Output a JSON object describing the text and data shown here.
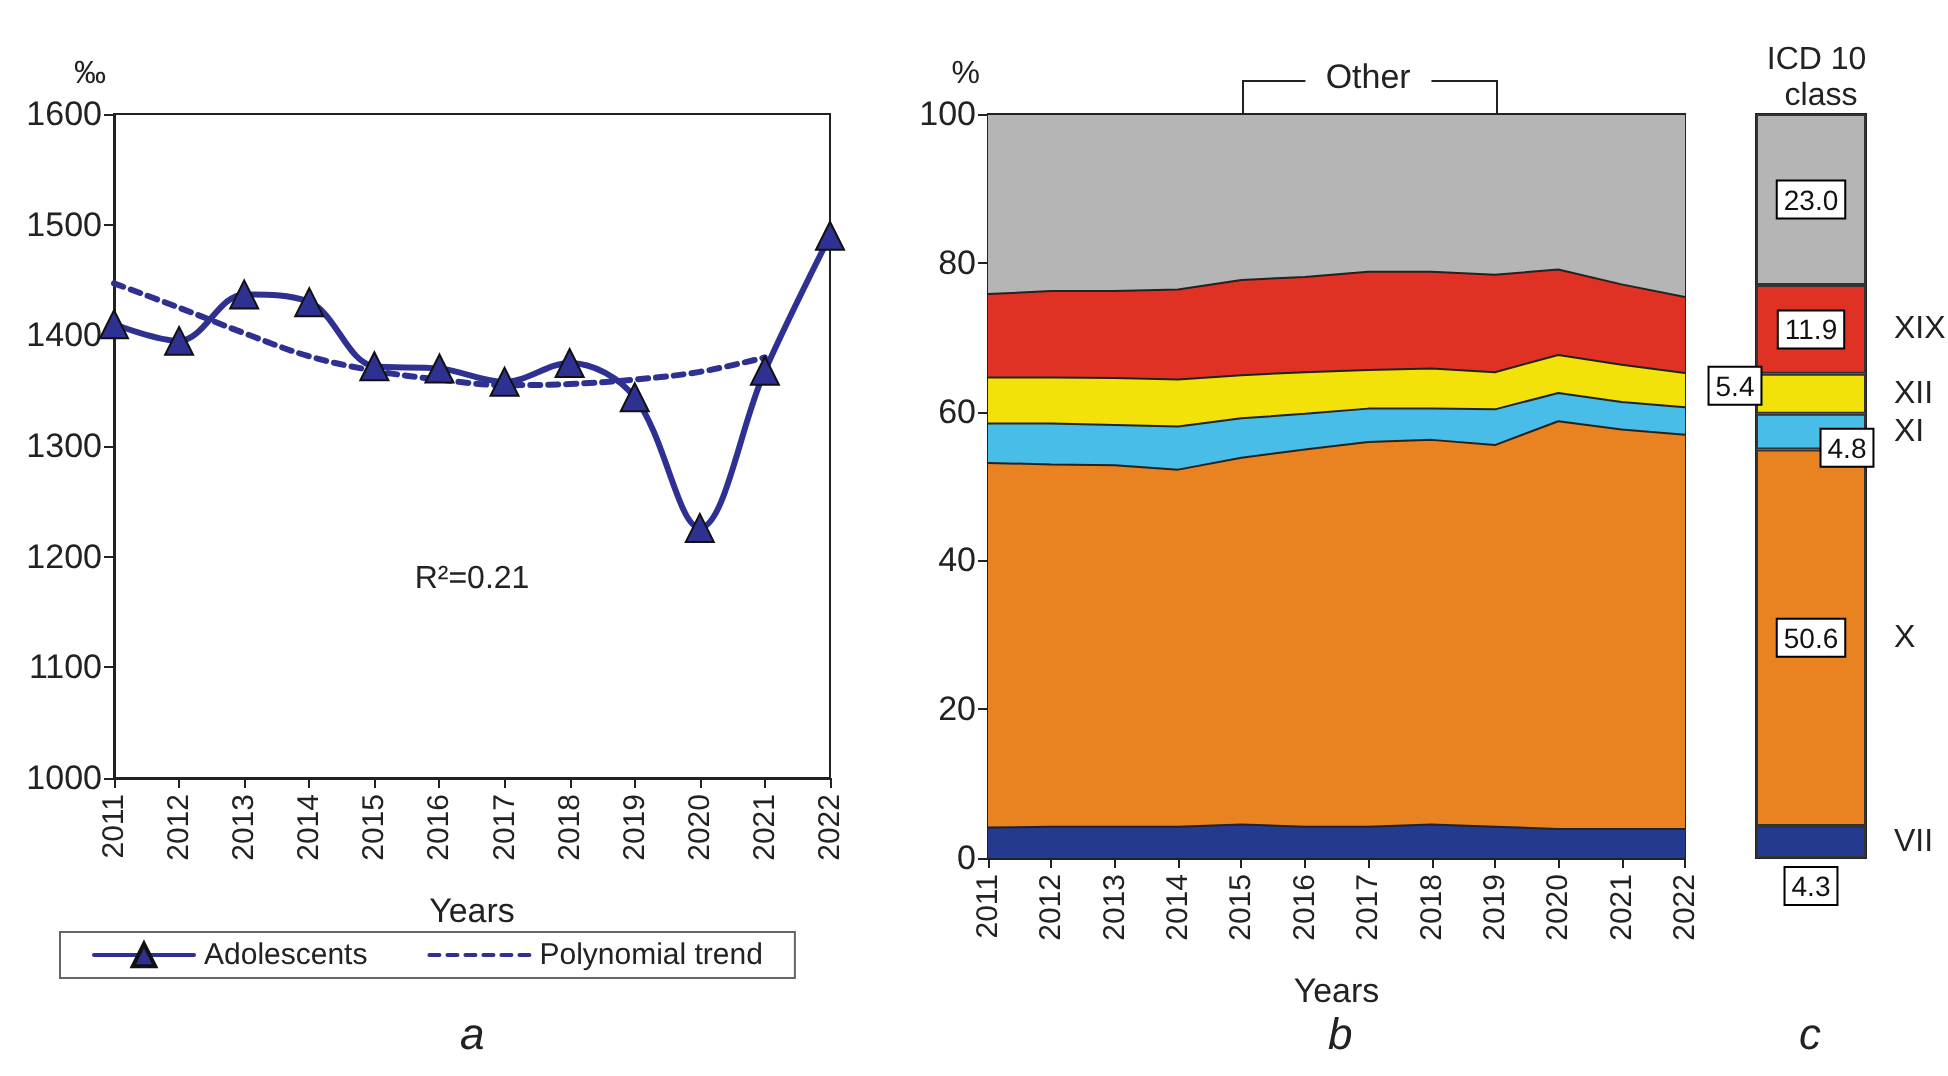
{
  "chart_data": [
    {
      "type": "line",
      "xlabel": "Years",
      "ylabel": "‰",
      "categories": [
        "2011",
        "2012",
        "2013",
        "2014",
        "2015",
        "2016",
        "2017",
        "2018",
        "2019",
        "2020",
        "2021",
        "2022"
      ],
      "series": [
        {
          "name": "Adolescents",
          "color": "#2e3192",
          "marker": "triangle",
          "line_style": "solid",
          "values": [
            1410,
            1395,
            1437,
            1430,
            1372,
            1370,
            1358,
            1375,
            1344,
            1226,
            1368,
            1490
          ]
        },
        {
          "name": "Polynomial trend",
          "color": "#2e3192",
          "marker": "none",
          "line_style": "dashed",
          "values": [
            1447,
            1425,
            1402,
            1381,
            1368,
            1360,
            1355,
            1356,
            1360,
            1367,
            1380,
            null
          ]
        }
      ],
      "ylim": [
        1000,
        1600
      ],
      "yticks": [
        1000,
        1100,
        1200,
        1300,
        1400,
        1500,
        1600
      ],
      "legend": "bottom",
      "annotations": [
        "R²=0.21",
        "a"
      ]
    },
    {
      "type": "area",
      "stacked": true,
      "xlabel": "Years",
      "ylabel": "%",
      "categories": [
        "2011",
        "2012",
        "2013",
        "2014",
        "2015",
        "2016",
        "2017",
        "2018",
        "2019",
        "2020",
        "2021",
        "2022"
      ],
      "series": [
        {
          "color": "#233a8f",
          "values": [
            4.1,
            4.2,
            4.2,
            4.2,
            4.5,
            4.2,
            4.2,
            4.5,
            4.2,
            3.9,
            3.9,
            3.9
          ]
        },
        {
          "color": "#e98322",
          "values": [
            49.0,
            48.7,
            48.6,
            48.0,
            49.3,
            50.7,
            51.7,
            51.7,
            51.3,
            54.8,
            53.7,
            53.0
          ]
        },
        {
          "color": "#47bde8",
          "values": [
            5.3,
            5.5,
            5.4,
            5.8,
            5.3,
            4.8,
            4.5,
            4.2,
            4.8,
            3.8,
            3.7,
            3.7
          ]
        },
        {
          "color": "#f2e20a",
          "values": [
            6.2,
            6.2,
            6.3,
            6.3,
            5.8,
            5.6,
            5.2,
            5.4,
            5.0,
            5.1,
            5.0,
            4.6
          ]
        },
        {
          "color": "#e03224",
          "values": [
            11.2,
            11.6,
            11.7,
            12.1,
            12.8,
            12.8,
            13.2,
            13.0,
            13.1,
            11.5,
            10.8,
            10.2
          ]
        },
        {
          "name": "Other",
          "color": "#b5b5b5",
          "values": [
            24.2,
            23.8,
            23.8,
            23.6,
            22.3,
            21.9,
            21.2,
            21.2,
            21.6,
            20.9,
            22.9,
            24.6
          ]
        }
      ],
      "ylim": [
        0,
        100
      ],
      "yticks": [
        0,
        20,
        40,
        60,
        80,
        100
      ],
      "annotations": [
        "b"
      ]
    },
    {
      "type": "bar",
      "stacked": true,
      "title": "ICD 10 class",
      "categories": [
        null
      ],
      "series": [
        {
          "name": "VII",
          "color": "#233a8f",
          "values": [
            4.3
          ],
          "value_labels": [
            "4.3"
          ]
        },
        {
          "name": "X",
          "color": "#e98322",
          "values": [
            50.6
          ],
          "value_labels": [
            "50.6"
          ]
        },
        {
          "name": "XI",
          "color": "#47bde8",
          "values": [
            4.8
          ],
          "value_labels": [
            "4.8"
          ]
        },
        {
          "name": "XII",
          "color": "#f2e20a",
          "values": [
            5.4
          ],
          "value_labels": [
            "5.4"
          ]
        },
        {
          "name": "XIX",
          "color": "#e03224",
          "values": [
            11.9
          ],
          "value_labels": [
            "11.9"
          ]
        },
        {
          "color": "#b5b5b5",
          "values": [
            23.0
          ],
          "value_labels": [
            "23.0"
          ]
        }
      ],
      "ylim": [
        0,
        100
      ],
      "tick_labels": false,
      "annotations": [
        "c"
      ]
    }
  ]
}
